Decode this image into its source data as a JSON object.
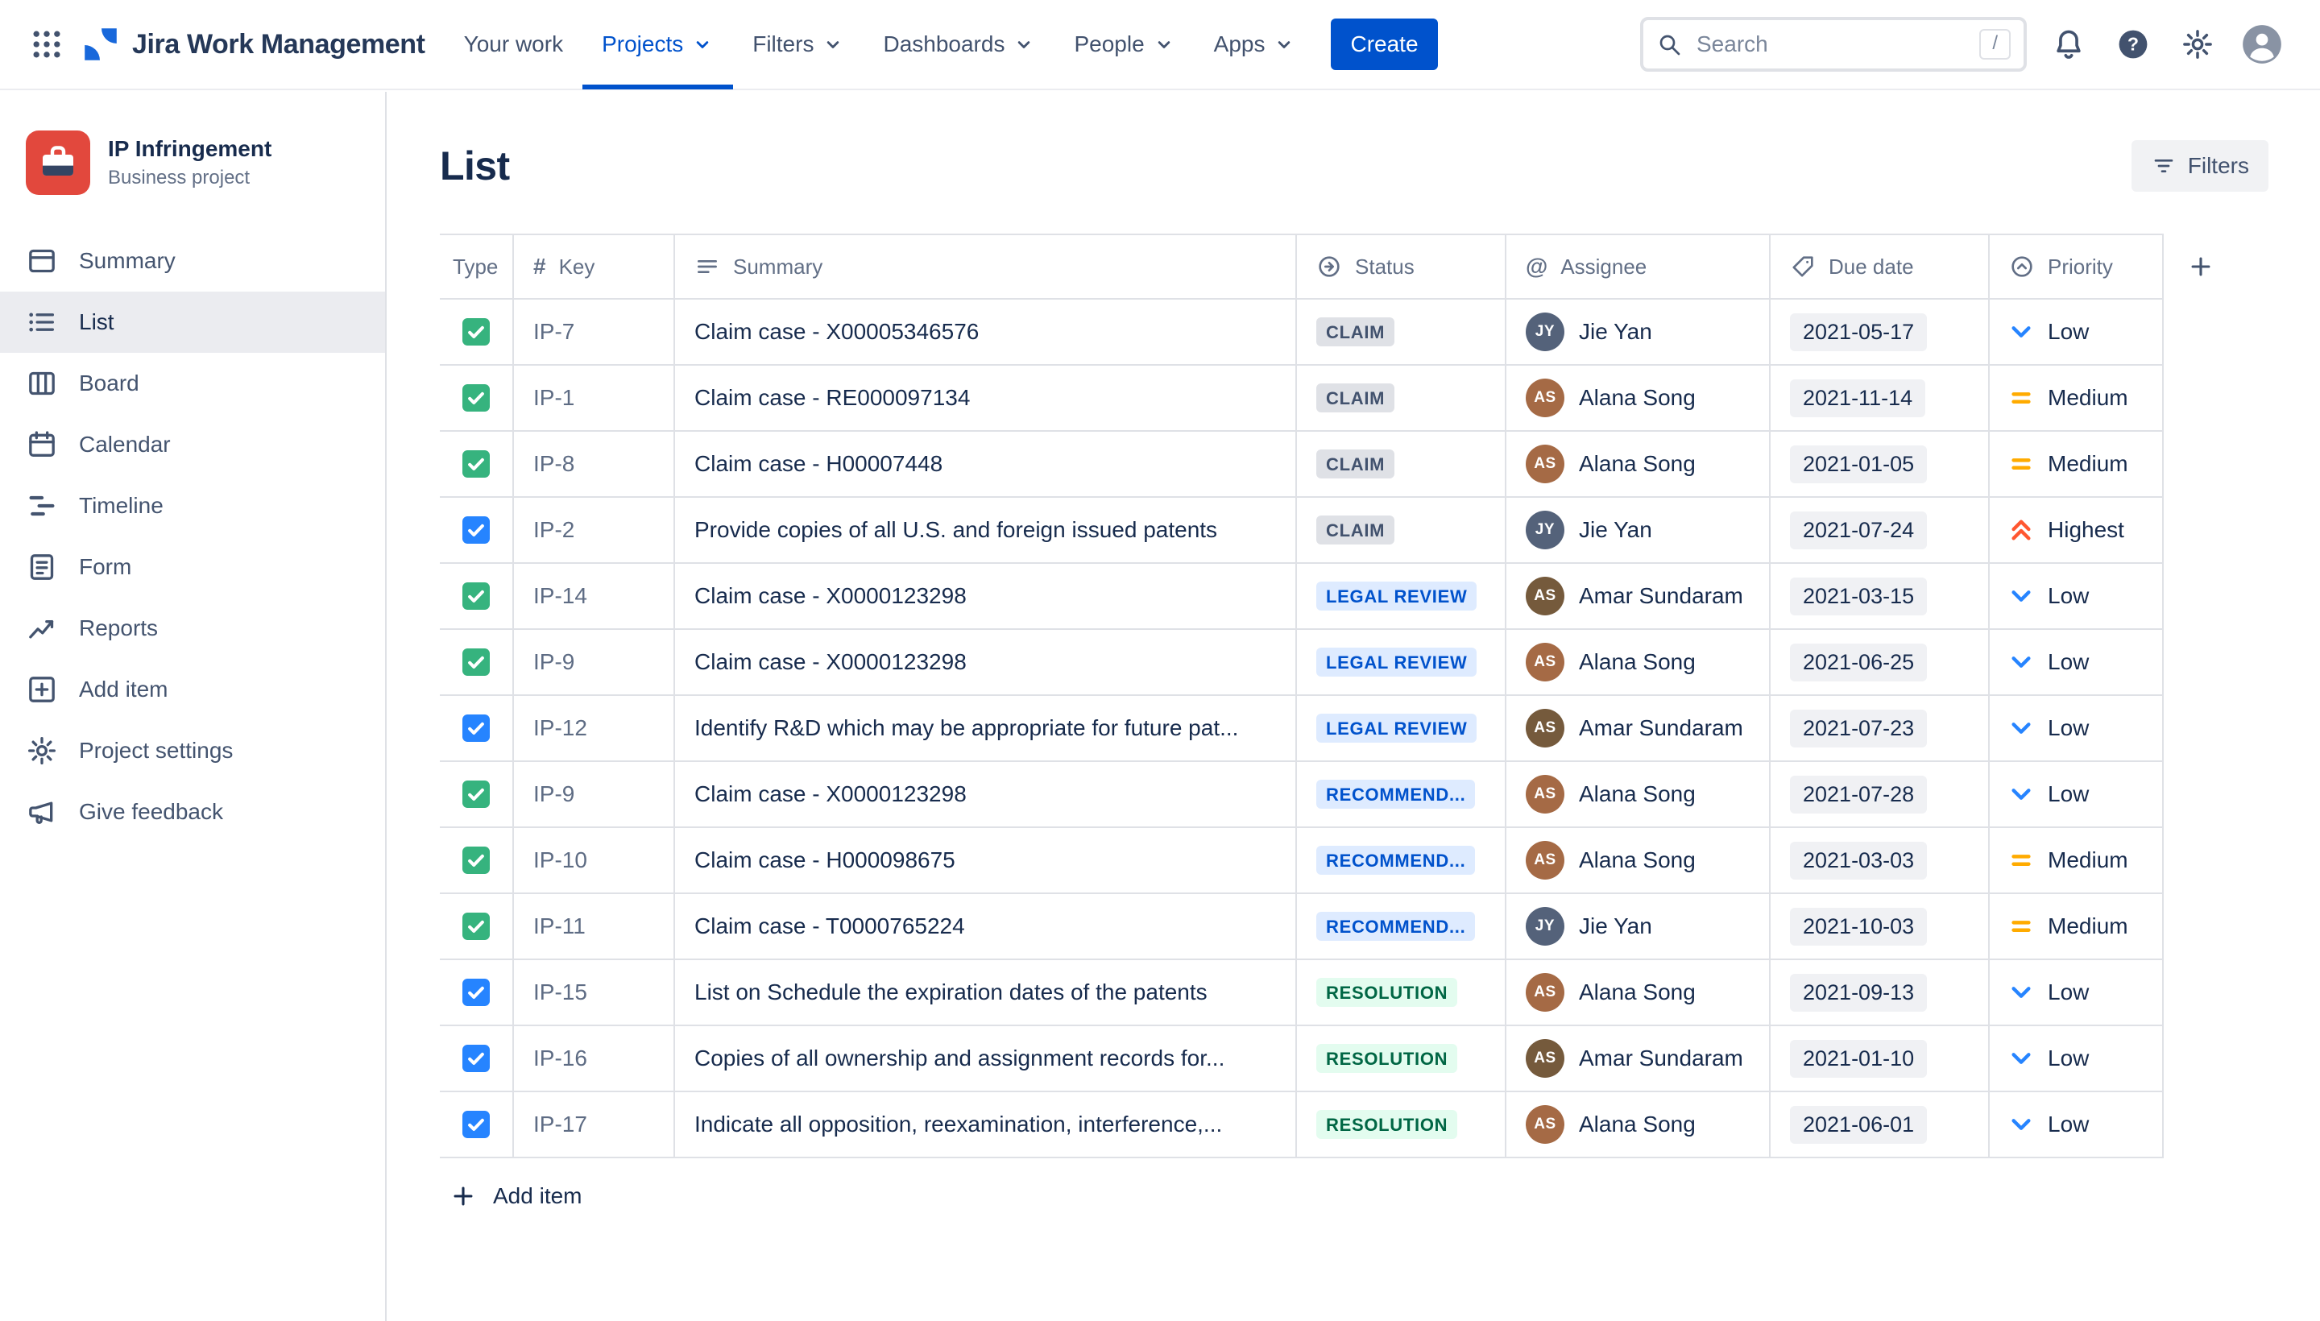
{
  "navbar": {
    "app_name": "Jira Work Management",
    "nav_items": [
      {
        "label": "Your work",
        "dropdown": false,
        "active": false
      },
      {
        "label": "Projects",
        "dropdown": true,
        "active": true
      },
      {
        "label": "Filters",
        "dropdown": true,
        "active": false
      },
      {
        "label": "Dashboards",
        "dropdown": true,
        "active": false
      },
      {
        "label": "People",
        "dropdown": true,
        "active": false
      },
      {
        "label": "Apps",
        "dropdown": true,
        "active": false
      }
    ],
    "create_button": "Create",
    "search": {
      "placeholder": "Search",
      "shortcut": "/",
      "icon": "search-icon"
    },
    "icon_buttons": [
      {
        "name": "notifications",
        "icon": "bell-icon"
      },
      {
        "name": "help",
        "icon": "help-icon"
      },
      {
        "name": "settings",
        "icon": "gear-icon"
      },
      {
        "name": "profile",
        "icon": "profile-icon"
      }
    ]
  },
  "sidebar": {
    "project": {
      "name": "IP Infringement",
      "type": "Business project",
      "avatar_icon": "project-avatar-icon"
    },
    "items": [
      {
        "label": "Summary",
        "icon": "summary-icon",
        "active": false
      },
      {
        "label": "List",
        "icon": "list-icon",
        "active": true
      },
      {
        "label": "Board",
        "icon": "board-icon",
        "active": false
      },
      {
        "label": "Calendar",
        "icon": "calendar-icon",
        "active": false
      },
      {
        "label": "Timeline",
        "icon": "timeline-icon",
        "active": false
      },
      {
        "label": "Form",
        "icon": "form-icon",
        "active": false
      },
      {
        "label": "Reports",
        "icon": "reports-icon",
        "active": false
      },
      {
        "label": "Add item",
        "icon": "add-item-icon",
        "active": false
      },
      {
        "label": "Project settings",
        "icon": "gear-icon",
        "active": false
      },
      {
        "label": "Give feedback",
        "icon": "megaphone-icon",
        "active": false
      }
    ]
  },
  "main": {
    "title": "List",
    "filters_button": "Filters",
    "filters_icon": "filter-icon",
    "add_item": "Add item",
    "table": {
      "columns": [
        {
          "label": "Type",
          "icon": null
        },
        {
          "label": "Key",
          "icon": "hash-icon"
        },
        {
          "label": "Summary",
          "icon": "summary-lines-icon"
        },
        {
          "label": "Status",
          "icon": "status-circle-icon"
        },
        {
          "label": "Assignee",
          "icon": "at-icon"
        },
        {
          "label": "Due date",
          "icon": "tag-icon"
        },
        {
          "label": "Priority",
          "icon": "priority-circle-icon"
        }
      ],
      "add_column_icon": "plus-icon",
      "rows": [
        {
          "type": "task",
          "key": "IP-7",
          "summary": "Claim case - X00005346576",
          "status": "CLAIM",
          "status_style": "gray",
          "assignee": "Jie Yan",
          "due_date": "2021-05-17",
          "priority": "Low"
        },
        {
          "type": "task",
          "key": "IP-1",
          "summary": "Claim case - RE000097134",
          "status": "CLAIM",
          "status_style": "gray",
          "assignee": "Alana Song",
          "due_date": "2021-11-14",
          "priority": "Medium"
        },
        {
          "type": "task",
          "key": "IP-8",
          "summary": "Claim case - H00007448",
          "status": "CLAIM",
          "status_style": "gray",
          "assignee": "Alana Song",
          "due_date": "2021-01-05",
          "priority": "Medium"
        },
        {
          "type": "subtask",
          "key": "IP-2",
          "summary": "Provide copies of all U.S. and foreign issued patents",
          "status": "CLAIM",
          "status_style": "gray",
          "assignee": "Jie Yan",
          "due_date": "2021-07-24",
          "priority": "Highest"
        },
        {
          "type": "task",
          "key": "IP-14",
          "summary": "Claim case - X0000123298",
          "status": "LEGAL REVIEW",
          "status_style": "blue",
          "assignee": "Amar Sundaram",
          "due_date": "2021-03-15",
          "priority": "Low"
        },
        {
          "type": "task",
          "key": "IP-9",
          "summary": "Claim case - X0000123298",
          "status": "LEGAL REVIEW",
          "status_style": "blue",
          "assignee": "Alana Song",
          "due_date": "2021-06-25",
          "priority": "Low"
        },
        {
          "type": "subtask",
          "key": "IP-12",
          "summary": "Identify R&D which may be appropriate for future pat...",
          "status": "LEGAL REVIEW",
          "status_style": "blue",
          "assignee": "Amar Sundaram",
          "due_date": "2021-07-23",
          "priority": "Low"
        },
        {
          "type": "task",
          "key": "IP-9",
          "summary": "Claim case - X0000123298",
          "status": "RECOMMEND...",
          "status_style": "blue",
          "assignee": "Alana Song",
          "due_date": "2021-07-28",
          "priority": "Low"
        },
        {
          "type": "task",
          "key": "IP-10",
          "summary": "Claim case - H000098675",
          "status": "RECOMMEND...",
          "status_style": "blue",
          "assignee": "Alana Song",
          "due_date": "2021-03-03",
          "priority": "Medium"
        },
        {
          "type": "task",
          "key": "IP-11",
          "summary": "Claim case - T0000765224",
          "status": "RECOMMEND...",
          "status_style": "blue",
          "assignee": "Jie Yan",
          "due_date": "2021-10-03",
          "priority": "Medium"
        },
        {
          "type": "subtask",
          "key": "IP-15",
          "summary": "List on Schedule the expiration dates of the patents",
          "status": "RESOLUTION",
          "status_style": "green",
          "assignee": "Alana Song",
          "due_date": "2021-09-13",
          "priority": "Low"
        },
        {
          "type": "subtask",
          "key": "IP-16",
          "summary": "Copies of all ownership and assignment records for...",
          "status": "RESOLUTION",
          "status_style": "green",
          "assignee": "Amar Sundaram",
          "due_date": "2021-01-10",
          "priority": "Low"
        },
        {
          "type": "subtask",
          "key": "IP-17",
          "summary": "Indicate all opposition, reexamination, interference,...",
          "status": "RESOLUTION",
          "status_style": "green",
          "assignee": "Alana Song",
          "due_date": "2021-06-01",
          "priority": "Low"
        }
      ]
    }
  },
  "colors": {
    "brand_blue": "#0052CC",
    "logo_blue": "#1868DB",
    "task_icon_green": "#36B37E",
    "subtask_icon_blue": "#2684FF",
    "status_gray_bg": "#DFE1E6",
    "status_gray_text": "#42526E",
    "status_blue_bg": "#DEEBFF",
    "status_blue_text": "#0052CC",
    "status_green_bg": "#E3FCEF",
    "status_green_text": "#006644",
    "priority_low": "#2684FF",
    "priority_medium": "#FFAB00",
    "priority_highest": "#FF5630",
    "project_avatar_red": "#E2483D"
  }
}
